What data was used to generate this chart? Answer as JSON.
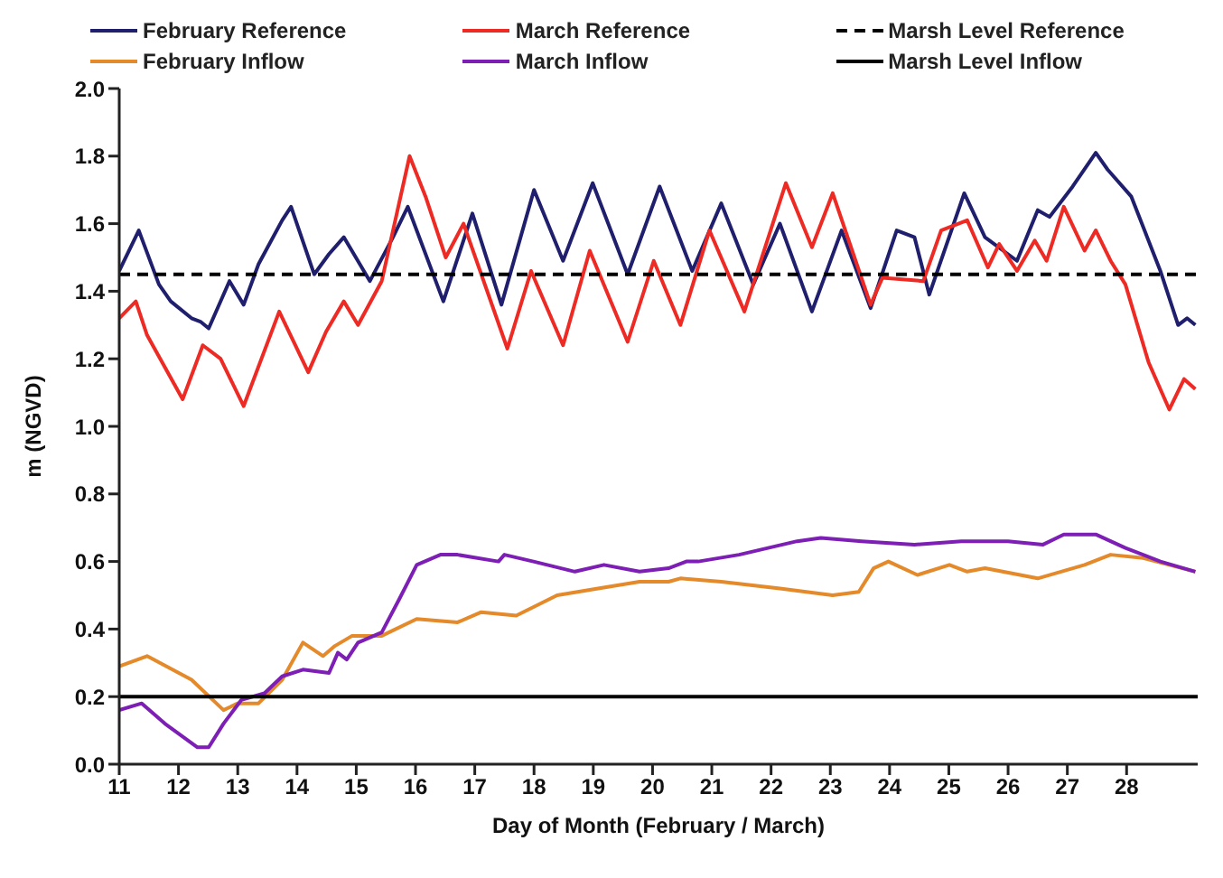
{
  "chart_data": {
    "type": "line",
    "xlabel": "Day of Month (February / March)",
    "ylabel": "m (NGVD)",
    "xlim": [
      11,
      29.2
    ],
    "xticks": [
      11,
      12,
      13,
      14,
      15,
      16,
      17,
      18,
      19,
      20,
      21,
      22,
      23,
      24,
      25,
      26,
      27,
      28
    ],
    "ylim": [
      0,
      2
    ],
    "yticks": [
      {
        "value": 0,
        "label": "0.0"
      },
      0.2,
      0.4,
      0.6,
      0.8,
      {
        "value": 1,
        "label": "1.0"
      },
      1.2,
      1.4,
      1.6,
      1.8,
      {
        "value": 2,
        "label": "2.0"
      }
    ],
    "grid": false,
    "legend": "top",
    "marker": "none",
    "series": [
      {
        "name": "February Reference",
        "color": "#1f1f6e",
        "x": [
          11.0,
          11.33,
          11.67,
          11.87,
          12.22,
          12.37,
          12.51,
          12.86,
          13.1,
          13.35,
          13.75,
          13.9,
          14.29,
          14.54,
          14.79,
          15.23,
          15.62,
          15.87,
          16.47,
          16.96,
          17.45,
          18.0,
          18.49,
          18.99,
          19.58,
          20.12,
          20.67,
          21.16,
          21.7,
          22.15,
          22.69,
          23.19,
          23.68,
          24.12,
          24.42,
          24.67,
          25.26,
          25.61,
          26.15,
          26.5,
          26.7,
          27.09,
          27.48,
          27.68,
          28.08,
          28.57,
          28.87,
          29.02,
          29.16
        ],
        "values": [
          1.46,
          1.58,
          1.42,
          1.37,
          1.32,
          1.31,
          1.29,
          1.43,
          1.36,
          1.48,
          1.61,
          1.65,
          1.45,
          1.51,
          1.56,
          1.43,
          1.56,
          1.65,
          1.37,
          1.63,
          1.36,
          1.7,
          1.49,
          1.72,
          1.45,
          1.71,
          1.46,
          1.66,
          1.42,
          1.6,
          1.34,
          1.58,
          1.35,
          1.58,
          1.56,
          1.39,
          1.69,
          1.56,
          1.49,
          1.64,
          1.62,
          1.71,
          1.81,
          1.76,
          1.68,
          1.46,
          1.3,
          1.32,
          1.3
        ]
      },
      {
        "name": "March Reference",
        "color": "#ee2a24",
        "x": [
          11.0,
          11.28,
          11.47,
          12.07,
          12.41,
          12.71,
          13.1,
          13.7,
          14.19,
          14.49,
          14.79,
          15.03,
          15.43,
          15.9,
          16.17,
          16.51,
          16.81,
          17.55,
          17.95,
          18.49,
          18.94,
          19.58,
          20.02,
          20.47,
          20.96,
          21.55,
          22.25,
          22.69,
          23.04,
          23.68,
          23.88,
          24.57,
          24.87,
          25.31,
          25.66,
          25.85,
          26.15,
          26.45,
          26.65,
          26.94,
          27.29,
          27.48,
          27.73,
          27.98,
          28.37,
          28.72,
          28.97,
          29.16
        ],
        "values": [
          1.32,
          1.37,
          1.27,
          1.08,
          1.24,
          1.2,
          1.06,
          1.34,
          1.16,
          1.28,
          1.37,
          1.3,
          1.43,
          1.8,
          1.68,
          1.5,
          1.6,
          1.23,
          1.46,
          1.24,
          1.52,
          1.25,
          1.49,
          1.3,
          1.58,
          1.34,
          1.72,
          1.53,
          1.69,
          1.36,
          1.44,
          1.43,
          1.58,
          1.61,
          1.47,
          1.54,
          1.46,
          1.55,
          1.49,
          1.65,
          1.52,
          1.58,
          1.49,
          1.42,
          1.19,
          1.05,
          1.14,
          1.11
        ]
      },
      {
        "name": "Marsh Level Reference",
        "color": "#000000",
        "line_style": "dashed",
        "x": [
          11,
          29.2
        ],
        "values": [
          1.45,
          1.45
        ]
      },
      {
        "name": "February Inflow",
        "color": "#e48a2a",
        "x": [
          11.0,
          11.47,
          12.22,
          12.76,
          13.0,
          13.35,
          13.75,
          14.1,
          14.44,
          14.64,
          14.93,
          15.43,
          16.02,
          16.71,
          17.11,
          17.7,
          18.39,
          19.08,
          19.78,
          20.27,
          20.47,
          21.16,
          22.15,
          23.04,
          23.48,
          23.73,
          23.98,
          24.47,
          25.01,
          25.31,
          25.61,
          26.5,
          27.29,
          27.73,
          28.28,
          29.16
        ],
        "values": [
          0.29,
          0.32,
          0.25,
          0.16,
          0.18,
          0.18,
          0.25,
          0.36,
          0.32,
          0.35,
          0.38,
          0.38,
          0.43,
          0.42,
          0.45,
          0.44,
          0.5,
          0.52,
          0.54,
          0.54,
          0.55,
          0.54,
          0.52,
          0.5,
          0.51,
          0.58,
          0.6,
          0.56,
          0.59,
          0.57,
          0.58,
          0.55,
          0.59,
          0.62,
          0.61,
          0.57
        ]
      },
      {
        "name": "March Inflow",
        "color": "#7d1fb5",
        "x": [
          11.0,
          11.38,
          11.77,
          12.32,
          12.51,
          12.76,
          13.06,
          13.45,
          13.75,
          14.1,
          14.54,
          14.69,
          14.84,
          15.03,
          15.43,
          15.73,
          16.02,
          16.42,
          16.71,
          17.4,
          17.5,
          17.99,
          18.69,
          19.18,
          19.78,
          20.27,
          20.57,
          20.77,
          21.46,
          22.44,
          22.84,
          23.53,
          24.42,
          25.21,
          26.0,
          26.59,
          26.94,
          27.48,
          27.98,
          28.57,
          29.16
        ],
        "values": [
          0.16,
          0.18,
          0.12,
          0.05,
          0.05,
          0.12,
          0.19,
          0.21,
          0.26,
          0.28,
          0.27,
          0.33,
          0.31,
          0.36,
          0.39,
          0.49,
          0.59,
          0.62,
          0.62,
          0.6,
          0.62,
          0.6,
          0.57,
          0.59,
          0.57,
          0.58,
          0.6,
          0.6,
          0.62,
          0.66,
          0.67,
          0.66,
          0.65,
          0.66,
          0.66,
          0.65,
          0.68,
          0.68,
          0.64,
          0.6,
          0.57
        ]
      },
      {
        "name": "Marsh Level Inflow",
        "color": "#000000",
        "line_style": "solid",
        "x": [
          11,
          29.2
        ],
        "values": [
          0.2,
          0.2
        ]
      }
    ]
  }
}
